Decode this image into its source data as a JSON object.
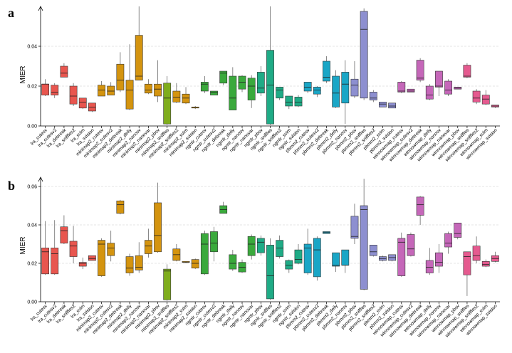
{
  "categories": [
    "lra_cutesv",
    "lra_cutesv2",
    "lra_debreak",
    "lra_sniffles2",
    "lra_svim",
    "lra_svision",
    "minimap2_cutesv",
    "minimap2_cutesv2",
    "minimap2_debreak",
    "minimap2_delly",
    "minimap2_nanosv",
    "minimap2_nanovar",
    "minimap2_pbsv",
    "minimap2_sniffles",
    "minimap2_sniffles2",
    "minimap2_svim",
    "minimap2_svision",
    "ngmlr_cutesv",
    "ngmlr_cutesv2",
    "ngmlr_debreak",
    "ngmlr_delly",
    "ngmlr_nanosv",
    "ngmlr_nanovar",
    "ngmlr_pbsv",
    "ngmlr_sniffles",
    "ngmlr_sniffles2",
    "ngmlr_svim",
    "ngmlr_svision",
    "pbmm2_cutesv",
    "pbmm2_cutesv2",
    "pbmm2_debreak",
    "pbmm2_delly",
    "pbmm2_nanosv",
    "pbmm2_pbsv",
    "pbmm2_sniffles",
    "pbmm2_sniffles2",
    "pbmm2_svim",
    "pbmm2_svision",
    "winnowmap_cutesv",
    "winnowmap_cutesv2",
    "winnowmap_debreak",
    "winnowmap_delly",
    "winnowmap_nanosv",
    "winnowmap_nanovar",
    "winnowmap_pbsv",
    "winnowmap_sniffles",
    "winnowmap_sniffles2",
    "winnowmap_svim",
    "winnowmap_svision"
  ],
  "colors": {
    "lra": "#e8564f",
    "minimap2": "#d4940f",
    "minimap2_sniffles": "#7fad1d",
    "ngmlr": "#3aa93c",
    "ngmlr_alt": "#1fab86",
    "pbmm2": "#1aa6c6",
    "pbmm2_alt": "#8d8fd0",
    "winnowmap": "#c567b9",
    "winnowmap_alt": "#e55a8f"
  },
  "chart_data": [
    {
      "panel_label": "a",
      "type": "boxplot",
      "ylabel": "MIER",
      "ylim": [
        0,
        0.06
      ],
      "yticks": [
        0.0,
        0.02,
        0.04
      ],
      "ytick_labels": [
        "0.00",
        "0.02",
        "0.04"
      ],
      "boxes": [
        [
          0.015,
          0.0155,
          0.021,
          0.021,
          0.0235
        ],
        [
          0.014,
          0.0155,
          0.017,
          0.0205,
          0.0215
        ],
        [
          0.0245,
          0.0245,
          0.0265,
          0.03,
          0.0315
        ],
        [
          0.01,
          0.011,
          0.015,
          0.02,
          0.0215
        ],
        [
          0.0085,
          0.009,
          0.012,
          0.014,
          0.014
        ],
        [
          0.007,
          0.0075,
          0.0095,
          0.0115,
          0.0115
        ],
        [
          0.015,
          0.015,
          0.018,
          0.0205,
          0.0225
        ],
        [
          0.0155,
          0.0155,
          0.0175,
          0.02,
          0.022
        ],
        [
          0.017,
          0.018,
          0.023,
          0.031,
          0.037
        ],
        [
          0.008,
          0.0085,
          0.018,
          0.023,
          0.041
        ],
        [
          0.023,
          0.023,
          0.025,
          0.0455,
          0.06
        ],
        [
          0.016,
          0.0165,
          0.018,
          0.021,
          0.0235
        ],
        [
          0.012,
          0.015,
          0.0185,
          0.021,
          0.033
        ],
        [
          0.0005,
          0.001,
          0.014,
          0.0215,
          0.025
        ],
        [
          0.0115,
          0.012,
          0.0145,
          0.0175,
          0.0215
        ],
        [
          0.011,
          0.0115,
          0.014,
          0.016,
          0.0195
        ],
        [
          0.0085,
          0.009,
          0.0095,
          0.0095,
          0.01
        ],
        [
          0.0165,
          0.0175,
          0.021,
          0.022,
          0.025
        ],
        [
          0.0155,
          0.0155,
          0.017,
          0.0175,
          0.0175
        ],
        [
          0.0205,
          0.0215,
          0.0265,
          0.0275,
          0.0275
        ],
        [
          0.008,
          0.008,
          0.014,
          0.025,
          0.0295
        ],
        [
          0.017,
          0.0185,
          0.022,
          0.025,
          0.0255
        ],
        [
          0.009,
          0.013,
          0.02,
          0.024,
          0.0255
        ],
        [
          0.015,
          0.0165,
          0.019,
          0.027,
          0.03
        ],
        [
          0.0005,
          0.001,
          0.0205,
          0.038,
          0.06
        ],
        [
          0.013,
          0.014,
          0.018,
          0.0195,
          0.0195
        ],
        [
          0.0085,
          0.01,
          0.012,
          0.015,
          0.015
        ],
        [
          0.0095,
          0.01,
          0.012,
          0.0145,
          0.0155
        ],
        [
          0.0165,
          0.0175,
          0.0195,
          0.022,
          0.022
        ],
        [
          0.0145,
          0.016,
          0.018,
          0.0195,
          0.02
        ],
        [
          0.0215,
          0.0225,
          0.0245,
          0.0325,
          0.035
        ],
        [
          0.009,
          0.0095,
          0.0165,
          0.025,
          0.028
        ],
        [
          0.001,
          0.0115,
          0.021,
          0.027,
          0.033
        ],
        [
          0.014,
          0.015,
          0.0205,
          0.0235,
          0.0325
        ],
        [
          0.013,
          0.014,
          0.0485,
          0.0575,
          0.059
        ],
        [
          0.012,
          0.013,
          0.014,
          0.017,
          0.018
        ],
        [
          0.0095,
          0.0095,
          0.011,
          0.012,
          0.012
        ],
        [
          0.009,
          0.009,
          0.01,
          0.0115,
          0.0115
        ],
        [
          0.0165,
          0.017,
          0.0175,
          0.022,
          0.0225
        ],
        [
          0.017,
          0.017,
          0.0175,
          0.0185,
          0.0185
        ],
        [
          0.022,
          0.023,
          0.024,
          0.033,
          0.034
        ],
        [
          0.013,
          0.0135,
          0.0155,
          0.02,
          0.021
        ],
        [
          0.015,
          0.0195,
          0.02,
          0.0275,
          0.0275
        ],
        [
          0.015,
          0.016,
          0.018,
          0.0225,
          0.0235
        ],
        [
          0.0185,
          0.0185,
          0.019,
          0.0195,
          0.0195
        ],
        [
          0.024,
          0.0245,
          0.025,
          0.0305,
          0.0315
        ],
        [
          0.011,
          0.012,
          0.014,
          0.0175,
          0.0185
        ],
        [
          0.0105,
          0.011,
          0.0135,
          0.0155,
          0.018
        ],
        [
          0.009,
          0.0095,
          0.01,
          0.0105,
          0.0105
        ]
      ]
    },
    {
      "panel_label": "b",
      "type": "boxplot",
      "ylabel": "MIER",
      "ylim": [
        0,
        0.065
      ],
      "yticks": [
        0.0,
        0.02,
        0.04,
        0.06
      ],
      "ytick_labels": [
        "0.00",
        "0.02",
        "0.04",
        "0.06"
      ],
      "boxes": [
        [
          0.014,
          0.0145,
          0.026,
          0.028,
          0.042
        ],
        [
          0.014,
          0.0145,
          0.025,
          0.028,
          0.0425
        ],
        [
          0.03,
          0.0305,
          0.037,
          0.039,
          0.045
        ],
        [
          0.02,
          0.0235,
          0.029,
          0.0315,
          0.0395
        ],
        [
          0.017,
          0.0185,
          0.02,
          0.0205,
          0.023
        ],
        [
          0.0215,
          0.0215,
          0.0225,
          0.024,
          0.024
        ],
        [
          0.013,
          0.0135,
          0.03,
          0.032,
          0.033
        ],
        [
          0.021,
          0.024,
          0.028,
          0.0305,
          0.037
        ],
        [
          0.0455,
          0.046,
          0.0505,
          0.0525,
          0.053
        ],
        [
          0.0135,
          0.015,
          0.0175,
          0.0235,
          0.025
        ],
        [
          0.015,
          0.0165,
          0.018,
          0.024,
          0.031
        ],
        [
          0.023,
          0.025,
          0.029,
          0.032,
          0.038
        ],
        [
          0.0255,
          0.026,
          0.0345,
          0.0515,
          0.062
        ],
        [
          0.0005,
          0.001,
          0.016,
          0.017,
          0.0195
        ],
        [
          0.021,
          0.0215,
          0.0245,
          0.0275,
          0.03
        ],
        [
          0.02,
          0.0205,
          0.0205,
          0.021,
          0.021
        ],
        [
          0.017,
          0.0175,
          0.02,
          0.022,
          0.0225
        ],
        [
          0.014,
          0.0145,
          0.03,
          0.0355,
          0.037
        ],
        [
          0.021,
          0.026,
          0.0305,
          0.0365,
          0.039
        ],
        [
          0.046,
          0.046,
          0.048,
          0.05,
          0.052
        ],
        [
          0.016,
          0.017,
          0.02,
          0.0245,
          0.027
        ],
        [
          0.015,
          0.0155,
          0.018,
          0.0205,
          0.022
        ],
        [
          0.022,
          0.024,
          0.03,
          0.034,
          0.035
        ],
        [
          0.024,
          0.0255,
          0.031,
          0.033,
          0.0345
        ],
        [
          0.001,
          0.0015,
          0.0135,
          0.0295,
          0.033
        ],
        [
          0.0225,
          0.0235,
          0.028,
          0.032,
          0.0345
        ],
        [
          0.015,
          0.017,
          0.019,
          0.0215,
          0.022
        ],
        [
          0.0195,
          0.02,
          0.022,
          0.027,
          0.03
        ],
        [
          0.014,
          0.015,
          0.028,
          0.03,
          0.038
        ],
        [
          0.011,
          0.013,
          0.027,
          0.033,
          0.034
        ],
        [
          0.0355,
          0.0355,
          0.036,
          0.0365,
          0.0365
        ],
        [
          0.0155,
          0.0185,
          0.019,
          0.0255,
          0.0255
        ],
        [
          0.015,
          0.019,
          0.019,
          0.027,
          0.027
        ],
        [
          0.03,
          0.033,
          0.034,
          0.0445,
          0.051
        ],
        [
          0.006,
          0.0065,
          0.048,
          0.05,
          0.064
        ],
        [
          0.0235,
          0.024,
          0.026,
          0.0295,
          0.0295
        ],
        [
          0.021,
          0.0215,
          0.0225,
          0.0235,
          0.024
        ],
        [
          0.021,
          0.0215,
          0.023,
          0.0245,
          0.0245
        ],
        [
          0.013,
          0.0135,
          0.031,
          0.033,
          0.036
        ],
        [
          0.0235,
          0.024,
          0.0275,
          0.035,
          0.036
        ],
        [
          0.04,
          0.045,
          0.0505,
          0.0545,
          0.055
        ],
        [
          0.014,
          0.015,
          0.018,
          0.0215,
          0.028
        ],
        [
          0.015,
          0.0185,
          0.0205,
          0.0255,
          0.03
        ],
        [
          0.025,
          0.0285,
          0.0305,
          0.0355,
          0.0365
        ],
        [
          0.0325,
          0.0335,
          0.0355,
          0.041,
          0.041
        ],
        [
          0.003,
          0.014,
          0.0235,
          0.026,
          0.026
        ],
        [
          0.02,
          0.0215,
          0.024,
          0.029,
          0.034
        ],
        [
          0.018,
          0.0185,
          0.0195,
          0.021,
          0.022
        ],
        [
          0.0205,
          0.021,
          0.0225,
          0.024,
          0.026
        ]
      ]
    }
  ]
}
